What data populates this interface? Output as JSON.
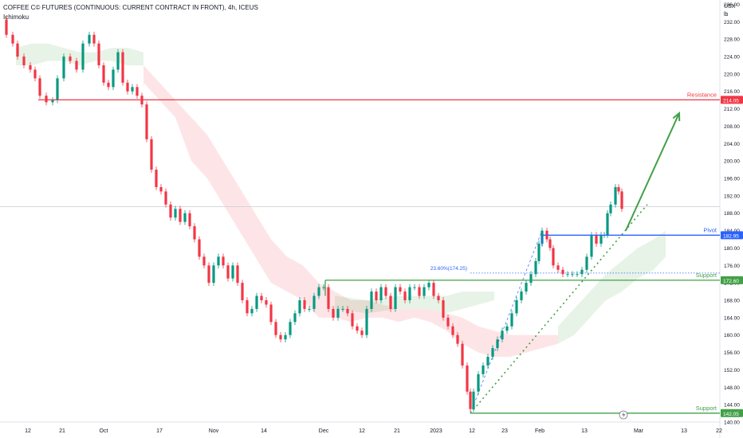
{
  "header": {
    "symbol": "COFFEE C© FUTURES (CONTINUOUS: CURRENT CONTRACT IN FRONT), 4h, ICEUS",
    "indicator": "Ichimoku"
  },
  "axis": {
    "currency": "USX",
    "unit": "lb"
  },
  "chart_data": {
    "type": "candlestick",
    "title": "COFFEE C© FUTURES (CONTINUOUS: CURRENT CONTRACT IN FRONT), 4h, ICEUS",
    "indicator": "Ichimoku",
    "ylim": [
      140.0,
      237.0
    ],
    "y_ticks": [
      140.0,
      144.0,
      148.0,
      152.0,
      156.0,
      160.0,
      164.0,
      168.0,
      172.0,
      176.0,
      180.0,
      184.0,
      188.0,
      192.0,
      196.0,
      200.0,
      204.0,
      208.0,
      212.0,
      216.0,
      220.0,
      224.0,
      228.0,
      232.0,
      236.0
    ],
    "x_ticks": [
      "12",
      "21",
      "Oct",
      "17",
      "Nov",
      "14",
      "Dec",
      "12",
      "21",
      "2023",
      "12",
      "23",
      "Feb",
      "13",
      "Mar",
      "13",
      "22"
    ],
    "x_tick_pos": [
      35,
      78,
      130,
      200,
      268,
      331,
      406,
      454,
      498,
      547,
      592,
      633,
      677,
      733,
      801,
      858,
      902
    ],
    "levels": [
      {
        "name": "Resistance",
        "value": 214.05,
        "label": "214.05",
        "color": "#f23645"
      },
      {
        "name": "Pivot",
        "value": 182.95,
        "label": "182.95",
        "color": "#2962ff"
      },
      {
        "name": "Support",
        "value": 172.6,
        "label": "172.60",
        "color": "#43a047"
      },
      {
        "name": "Support",
        "value": 142.05,
        "label": "142.05",
        "color": "#43a047"
      }
    ],
    "fib_label": "23.60%(174.25)",
    "fib_value": 174.25,
    "current_price": 189.5,
    "price_path": [
      [
        0,
        232.5
      ],
      [
        8,
        229
      ],
      [
        16,
        227
      ],
      [
        22,
        224
      ],
      [
        30,
        222
      ],
      [
        38,
        221
      ],
      [
        44,
        219
      ],
      [
        50,
        215
      ],
      [
        58,
        213.5
      ],
      [
        66,
        214
      ],
      [
        72,
        219
      ],
      [
        80,
        224
      ],
      [
        88,
        223
      ],
      [
        96,
        221
      ],
      [
        104,
        227
      ],
      [
        112,
        229
      ],
      [
        118,
        227
      ],
      [
        124,
        222
      ],
      [
        130,
        218
      ],
      [
        136,
        217
      ],
      [
        142,
        221
      ],
      [
        148,
        225
      ],
      [
        154,
        218
      ],
      [
        160,
        216
      ],
      [
        166,
        217
      ],
      [
        172,
        215
      ],
      [
        178,
        213
      ],
      [
        184,
        205
      ],
      [
        190,
        198
      ],
      [
        196,
        194
      ],
      [
        202,
        193
      ],
      [
        208,
        190
      ],
      [
        214,
        187
      ],
      [
        220,
        189
      ],
      [
        226,
        186
      ],
      [
        232,
        188
      ],
      [
        238,
        185
      ],
      [
        244,
        182
      ],
      [
        250,
        178
      ],
      [
        256,
        176
      ],
      [
        262,
        172
      ],
      [
        268,
        176
      ],
      [
        274,
        178
      ],
      [
        280,
        176
      ],
      [
        286,
        173
      ],
      [
        292,
        176
      ],
      [
        298,
        172
      ],
      [
        304,
        168
      ],
      [
        310,
        165
      ],
      [
        316,
        166
      ],
      [
        322,
        169
      ],
      [
        328,
        168
      ],
      [
        334,
        167
      ],
      [
        340,
        163
      ],
      [
        346,
        160
      ],
      [
        352,
        159
      ],
      [
        358,
        160
      ],
      [
        364,
        163
      ],
      [
        370,
        165
      ],
      [
        376,
        168
      ],
      [
        382,
        166
      ],
      [
        388,
        166
      ],
      [
        394,
        169
      ],
      [
        400,
        171
      ],
      [
        406,
        171
      ],
      [
        412,
        166
      ],
      [
        418,
        164
      ],
      [
        424,
        166
      ],
      [
        430,
        166
      ],
      [
        436,
        165
      ],
      [
        442,
        162
      ],
      [
        448,
        161
      ],
      [
        454,
        160
      ],
      [
        460,
        166
      ],
      [
        466,
        170
      ],
      [
        472,
        168
      ],
      [
        478,
        171
      ],
      [
        484,
        169
      ],
      [
        490,
        166
      ],
      [
        496,
        171
      ],
      [
        502,
        170
      ],
      [
        508,
        168
      ],
      [
        514,
        171
      ],
      [
        520,
        171
      ],
      [
        526,
        169
      ],
      [
        532,
        171
      ],
      [
        538,
        172
      ],
      [
        544,
        169
      ],
      [
        550,
        168
      ],
      [
        556,
        164
      ],
      [
        562,
        162
      ],
      [
        568,
        160
      ],
      [
        574,
        158
      ],
      [
        580,
        153
      ],
      [
        586,
        147
      ],
      [
        590,
        143
      ],
      [
        594,
        147
      ],
      [
        600,
        151
      ],
      [
        606,
        153
      ],
      [
        612,
        155
      ],
      [
        618,
        157
      ],
      [
        624,
        159
      ],
      [
        630,
        161
      ],
      [
        636,
        162
      ],
      [
        642,
        165
      ],
      [
        648,
        168
      ],
      [
        654,
        170
      ],
      [
        660,
        172
      ],
      [
        666,
        174
      ],
      [
        672,
        177
      ],
      [
        676,
        181
      ],
      [
        680,
        184
      ],
      [
        686,
        182
      ],
      [
        690,
        180
      ],
      [
        694,
        176
      ],
      [
        700,
        175
      ],
      [
        706,
        174
      ],
      [
        712,
        174
      ],
      [
        718,
        174
      ],
      [
        724,
        174
      ],
      [
        730,
        175
      ],
      [
        736,
        178
      ],
      [
        742,
        183
      ],
      [
        748,
        181
      ],
      [
        754,
        183
      ],
      [
        758,
        183
      ],
      [
        762,
        188
      ],
      [
        766,
        190
      ],
      [
        772,
        194
      ],
      [
        776,
        193
      ],
      [
        780,
        189
      ]
    ],
    "resistance_arrow": {
      "from": [
        785,
        184
      ],
      "to": [
        852,
        211
      ]
    },
    "trendline_dotted": {
      "from": [
        590,
        142
      ],
      "to": [
        812,
        190
      ]
    },
    "trendline_dashed": {
      "from": [
        590,
        142
      ],
      "to": [
        680,
        184
      ]
    },
    "cloud_red": [
      [
        180,
        222,
        218
      ],
      [
        200,
        218,
        214
      ],
      [
        220,
        214,
        210
      ],
      [
        240,
        210,
        200
      ],
      [
        260,
        206,
        196
      ],
      [
        280,
        200,
        190
      ],
      [
        300,
        194,
        184
      ],
      [
        320,
        188,
        178
      ],
      [
        340,
        182,
        172
      ],
      [
        360,
        178,
        170
      ],
      [
        380,
        176,
        168
      ],
      [
        400,
        172,
        164
      ],
      [
        420,
        170,
        164
      ],
      [
        440,
        168,
        163
      ],
      [
        460,
        168,
        164
      ],
      [
        480,
        167,
        164
      ],
      [
        500,
        166,
        163
      ],
      [
        520,
        166,
        164
      ],
      [
        540,
        166,
        163
      ],
      [
        560,
        165,
        161
      ],
      [
        580,
        164,
        158
      ],
      [
        600,
        162,
        156
      ],
      [
        620,
        161,
        155
      ],
      [
        640,
        160,
        155
      ],
      [
        660,
        160,
        156
      ],
      [
        680,
        160,
        157
      ],
      [
        700,
        160,
        158
      ]
    ],
    "cloud_green": [
      [
        20,
        226,
        222
      ],
      [
        40,
        227,
        222
      ],
      [
        60,
        227,
        223
      ],
      [
        80,
        226,
        223
      ],
      [
        100,
        225,
        222
      ],
      [
        120,
        225,
        223
      ],
      [
        140,
        226,
        223
      ],
      [
        160,
        226,
        222
      ],
      [
        180,
        225,
        222
      ],
      [
        420,
        169,
        166
      ],
      [
        460,
        168,
        165
      ],
      [
        500,
        169,
        166
      ],
      [
        540,
        169,
        166
      ],
      [
        560,
        169,
        165
      ],
      [
        580,
        170,
        166
      ],
      [
        600,
        170,
        167
      ],
      [
        620,
        170,
        168
      ],
      [
        700,
        162,
        158
      ],
      [
        720,
        166,
        160
      ],
      [
        740,
        170,
        164
      ],
      [
        760,
        174,
        168
      ],
      [
        780,
        177,
        170
      ],
      [
        800,
        180,
        173
      ],
      [
        820,
        182,
        175
      ],
      [
        835,
        184,
        178
      ]
    ]
  }
}
